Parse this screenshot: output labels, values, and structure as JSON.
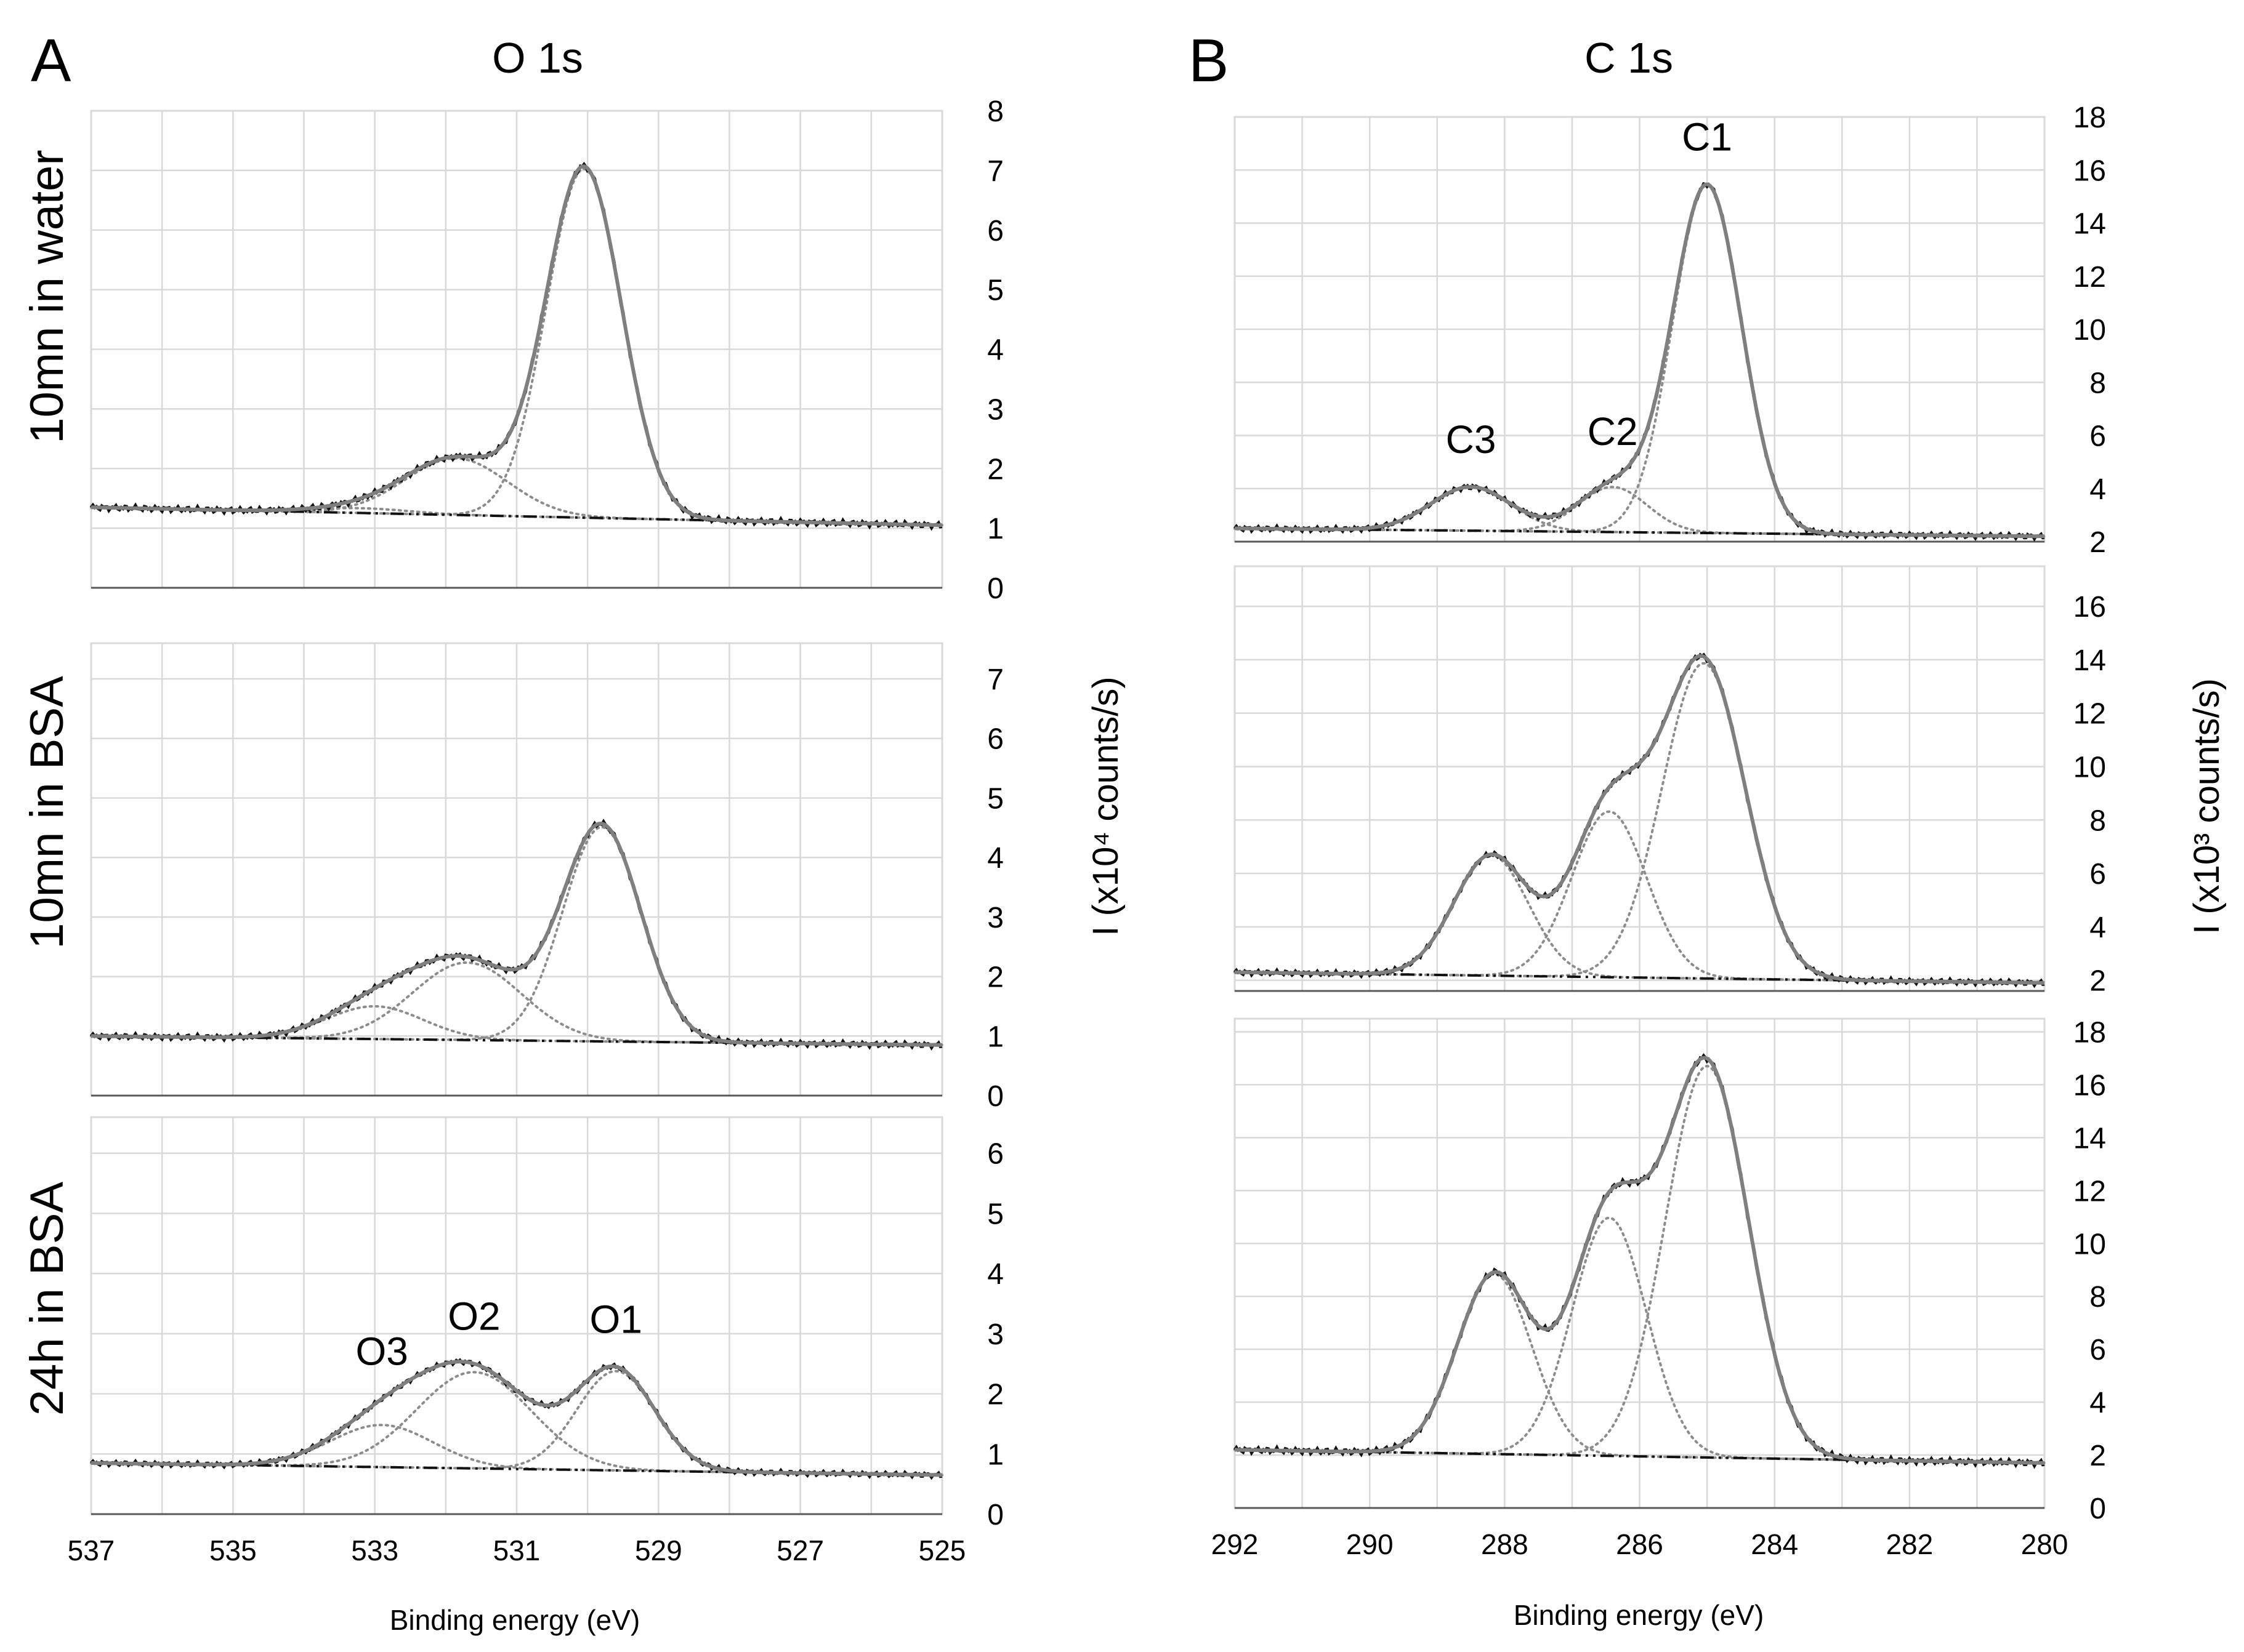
{
  "panels": {
    "A": {
      "letter": "A",
      "title": "O 1s",
      "xlabel": "Binding energy (eV)"
    },
    "B": {
      "letter": "B",
      "title": "C 1s",
      "xlabel": "Binding energy (eV)"
    }
  },
  "row_labels": [
    "10mn in water",
    "10mn in BSA",
    "24h in BSA"
  ],
  "ylabel_O": "I (x10⁴ counts/s)",
  "ylabel_C": "I (x10³ counts/s)",
  "colors": {
    "measured": "#111111",
    "fit_envelope": "#7f7f7f",
    "component": "#8c8c8c",
    "background": "#111111",
    "grid": "#d9d9d9",
    "axis": "#595959",
    "text": "#000000"
  },
  "chart_data": [
    {
      "type": "line",
      "id": "O1s-10mn-water",
      "panel": "A",
      "row_label": "10mn in water",
      "x_range": [
        537,
        525
      ],
      "x_reversed": true,
      "x_ticks": [
        537,
        535,
        533,
        531,
        529,
        527,
        525
      ],
      "ylim": [
        0,
        8
      ],
      "y_ticks": [
        0,
        1,
        2,
        3,
        4,
        5,
        6,
        7,
        8
      ],
      "y_axis_side": "right",
      "grid": true,
      "background": {
        "x": [
          537,
          525
        ],
        "y": [
          1.35,
          1.05
        ]
      },
      "peaks": [
        {
          "name": "O1",
          "label": "",
          "center": 530.05,
          "height": 5.85,
          "fwhm": 1.25
        },
        {
          "name": "O2",
          "label": "",
          "center": 531.85,
          "height": 0.95,
          "fwhm": 1.7
        },
        {
          "name": "O3",
          "label": "",
          "center": 533.2,
          "height": 0.08,
          "fwhm": 1.6
        }
      ]
    },
    {
      "type": "line",
      "id": "O1s-10mn-BSA",
      "panel": "A",
      "row_label": "10mn in BSA",
      "x_range": [
        537,
        525
      ],
      "x_reversed": true,
      "x_ticks": [
        537,
        535,
        533,
        531,
        529,
        527,
        525
      ],
      "ylim": [
        0,
        7.6
      ],
      "y_ticks": [
        0,
        1,
        2,
        3,
        4,
        5,
        6,
        7
      ],
      "y_axis_side": "right",
      "grid": true,
      "background": {
        "x": [
          537,
          525
        ],
        "y": [
          1.0,
          0.85
        ]
      },
      "peaks": [
        {
          "name": "O1",
          "label": "",
          "center": 529.8,
          "height": 3.6,
          "fwhm": 1.3
        },
        {
          "name": "O2",
          "label": "",
          "center": 531.7,
          "height": 1.3,
          "fwhm": 1.8
        },
        {
          "name": "O3",
          "label": "",
          "center": 533.0,
          "height": 0.55,
          "fwhm": 1.6
        }
      ]
    },
    {
      "type": "line",
      "id": "O1s-24h-BSA",
      "panel": "A",
      "row_label": "24h in BSA",
      "x_range": [
        537,
        525
      ],
      "x_reversed": true,
      "x_ticks": [
        537,
        535,
        533,
        531,
        529,
        527,
        525
      ],
      "ylim": [
        0,
        6.6
      ],
      "y_ticks": [
        0,
        1,
        2,
        3,
        4,
        5,
        6
      ],
      "y_axis_side": "right",
      "grid": true,
      "background": {
        "x": [
          537,
          525
        ],
        "y": [
          0.85,
          0.65
        ]
      },
      "peaks": [
        {
          "name": "O1",
          "label": "O1",
          "center": 529.6,
          "height": 1.65,
          "fwhm": 1.3
        },
        {
          "name": "O2",
          "label": "O2",
          "center": 531.6,
          "height": 1.6,
          "fwhm": 1.9
        },
        {
          "name": "O3",
          "label": "O3",
          "center": 532.9,
          "height": 0.7,
          "fwhm": 1.7
        }
      ]
    },
    {
      "type": "line",
      "id": "C1s-10mn-water",
      "panel": "B",
      "row_label": "10mn in water",
      "x_range": [
        292,
        280
      ],
      "x_reversed": true,
      "x_ticks": [
        292,
        290,
        288,
        286,
        284,
        282,
        280
      ],
      "ylim": [
        2,
        18
      ],
      "y_ticks": [
        2,
        4,
        6,
        8,
        10,
        12,
        14,
        16,
        18
      ],
      "y_axis_side": "right",
      "grid": true,
      "background": {
        "x": [
          292,
          280
        ],
        "y": [
          2.5,
          2.2
        ]
      },
      "peaks": [
        {
          "name": "C1",
          "label": "C1",
          "center": 285.0,
          "height": 13.1,
          "fwhm": 1.2
        },
        {
          "name": "C2",
          "label": "C2",
          "center": 286.4,
          "height": 1.7,
          "fwhm": 1.2
        },
        {
          "name": "C3",
          "label": "C3",
          "center": 288.5,
          "height": 1.65,
          "fwhm": 1.4
        }
      ]
    },
    {
      "type": "line",
      "id": "C1s-10mn-BSA",
      "panel": "B",
      "row_label": "10mn in BSA",
      "x_range": [
        292,
        280
      ],
      "x_reversed": true,
      "x_ticks": [
        292,
        290,
        288,
        286,
        284,
        282,
        280
      ],
      "ylim": [
        1.6,
        17.5
      ],
      "y_ticks": [
        2,
        4,
        6,
        8,
        10,
        12,
        14,
        16
      ],
      "y_axis_side": "right",
      "grid": true,
      "background": {
        "x": [
          292,
          280
        ],
        "y": [
          2.3,
          1.9
        ]
      },
      "peaks": [
        {
          "name": "C1",
          "label": "",
          "center": 285.05,
          "height": 11.8,
          "fwhm": 1.45
        },
        {
          "name": "C2",
          "label": "",
          "center": 286.45,
          "height": 6.2,
          "fwhm": 1.3
        },
        {
          "name": "C3",
          "label": "",
          "center": 288.2,
          "height": 4.5,
          "fwhm": 1.3
        }
      ]
    },
    {
      "type": "line",
      "id": "C1s-24h-BSA",
      "panel": "B",
      "row_label": "24h in BSA",
      "x_range": [
        292,
        280
      ],
      "x_reversed": true,
      "x_ticks": [
        292,
        290,
        288,
        286,
        284,
        282,
        280
      ],
      "ylim": [
        0,
        18.5
      ],
      "y_ticks": [
        0,
        2,
        4,
        6,
        8,
        10,
        12,
        14,
        16,
        18
      ],
      "y_axis_side": "right",
      "grid": true,
      "background": {
        "x": [
          292,
          280
        ],
        "y": [
          2.2,
          1.7
        ]
      },
      "peaks": [
        {
          "name": "C1",
          "label": "",
          "center": 285.0,
          "height": 14.8,
          "fwhm": 1.45
        },
        {
          "name": "C2",
          "label": "",
          "center": 286.45,
          "height": 9.0,
          "fwhm": 1.3
        },
        {
          "name": "C3",
          "label": "",
          "center": 288.15,
          "height": 6.8,
          "fwhm": 1.3
        }
      ]
    }
  ]
}
